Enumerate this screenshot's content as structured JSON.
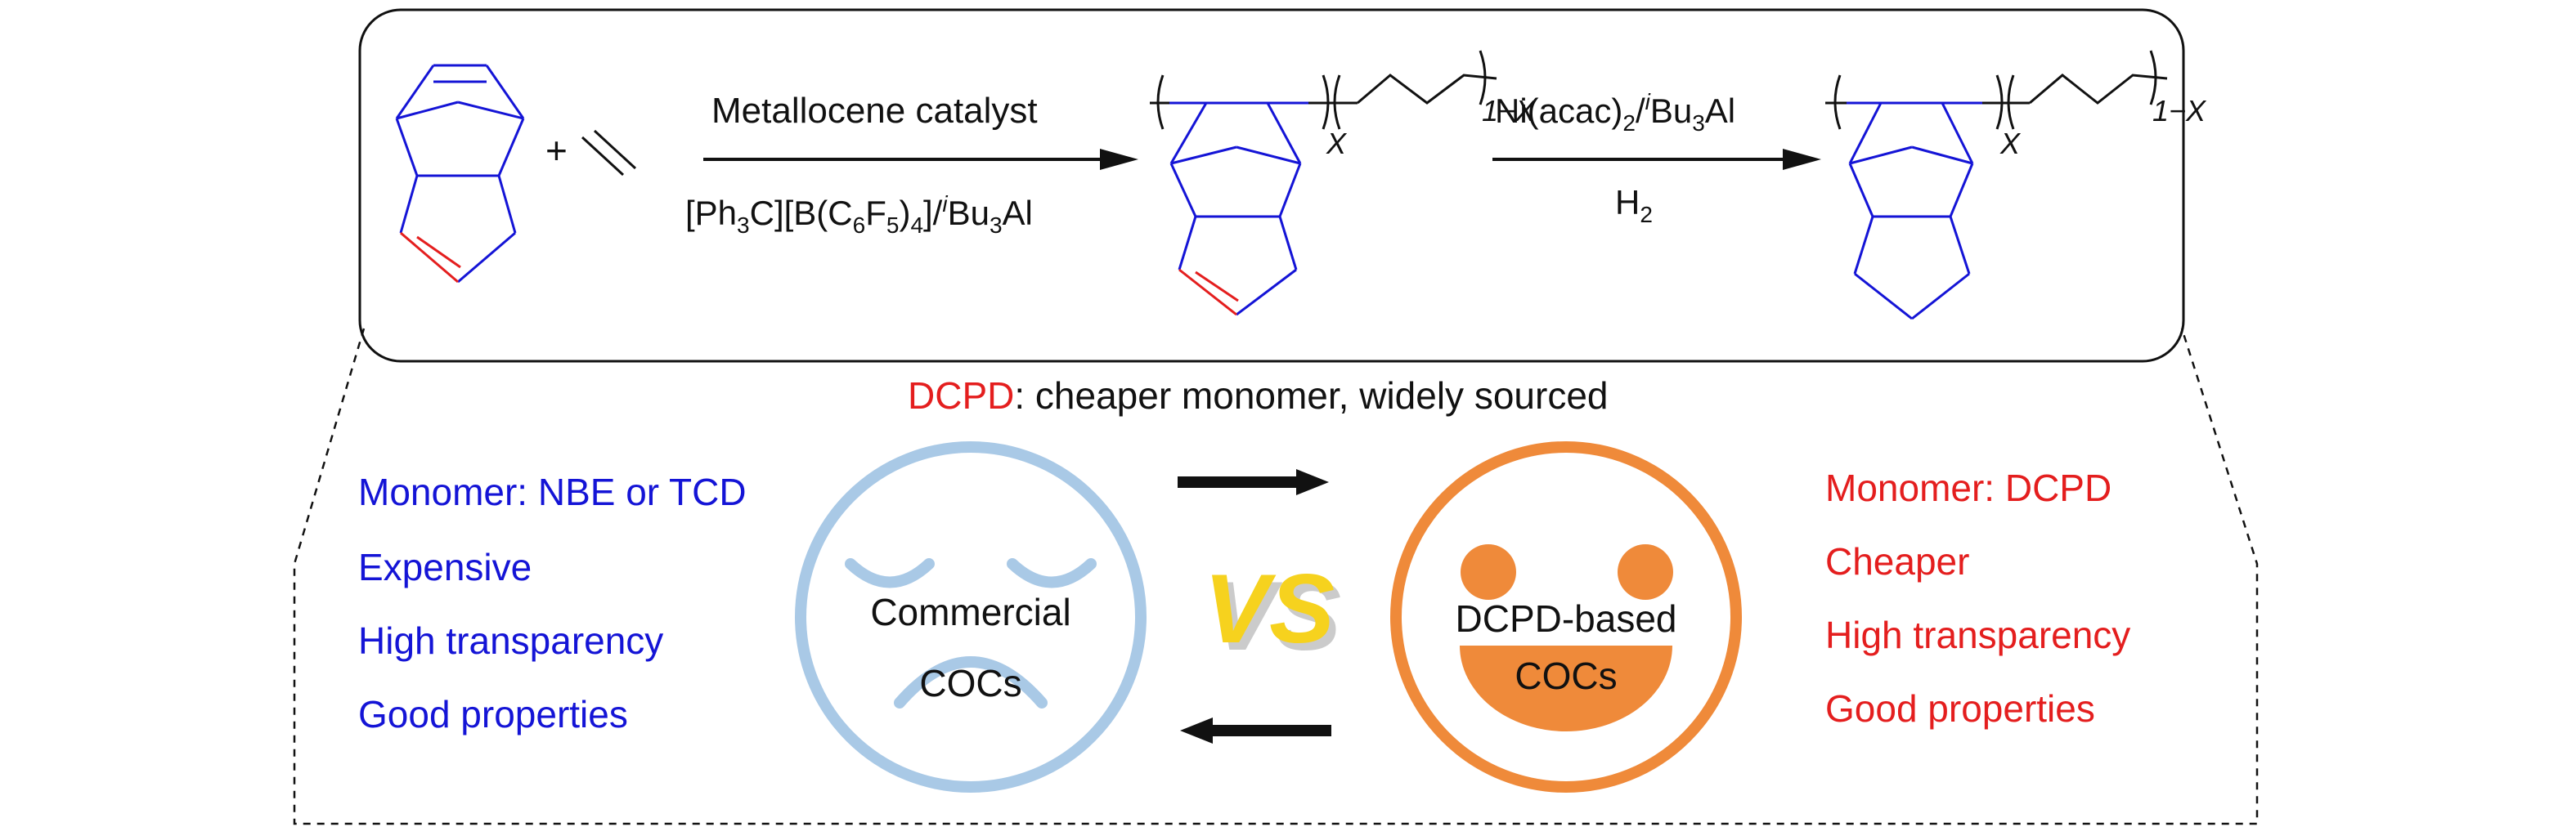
{
  "reaction": {
    "step1_catalyst": "Metallocene catalyst",
    "step1_cocat_main": "[Ph",
    "step1_cocat_sub3": "3",
    "step1_cocat_mid1": "C][B(C",
    "step1_cocat_sub6": "6",
    "step1_cocat_mid2": "F",
    "step1_cocat_sub5": "5",
    "step1_cocat_mid3": ")",
    "step1_cocat_sub4": "4",
    "step1_cocat_mid4": "]/",
    "step1_cocat_sup_i": "i",
    "step1_cocat_end": "Bu",
    "step1_cocat_sub3b": "3",
    "step1_cocat_al": "Al",
    "step2_cat_a": "Ni(acac)",
    "step2_cat_sub2": "2",
    "step2_cat_b": "/",
    "step2_cat_sup_i": "i",
    "step2_cat_c": "Bu",
    "step2_cat_sub3": "3",
    "step2_cat_d": "Al",
    "step2_h": "H",
    "step2_h_sub": "2",
    "plus": "+",
    "x_label": "X",
    "one_minus_x": "1−X"
  },
  "headline": {
    "dcpd": "DCPD",
    "rest": ": cheaper monomer, widely sourced"
  },
  "left_list": [
    "Monomer: NBE or TCD",
    "Expensive",
    "High transparency",
    "Good properties"
  ],
  "right_list": [
    "Monomer: DCPD",
    "Cheaper",
    "High transparency",
    "Good properties"
  ],
  "sad_face": {
    "line1": "Commercial",
    "line2": "COCs"
  },
  "happy_face": {
    "line1": "DCPD-based",
    "line2": "COCs"
  },
  "vs_label": "VS",
  "colors": {
    "blue_text": "#1414d6",
    "red_text": "#e41e1e",
    "sad_face": "#a9c9e6",
    "happy_face": "#ef8a3a",
    "vs": "#f6d21e"
  }
}
